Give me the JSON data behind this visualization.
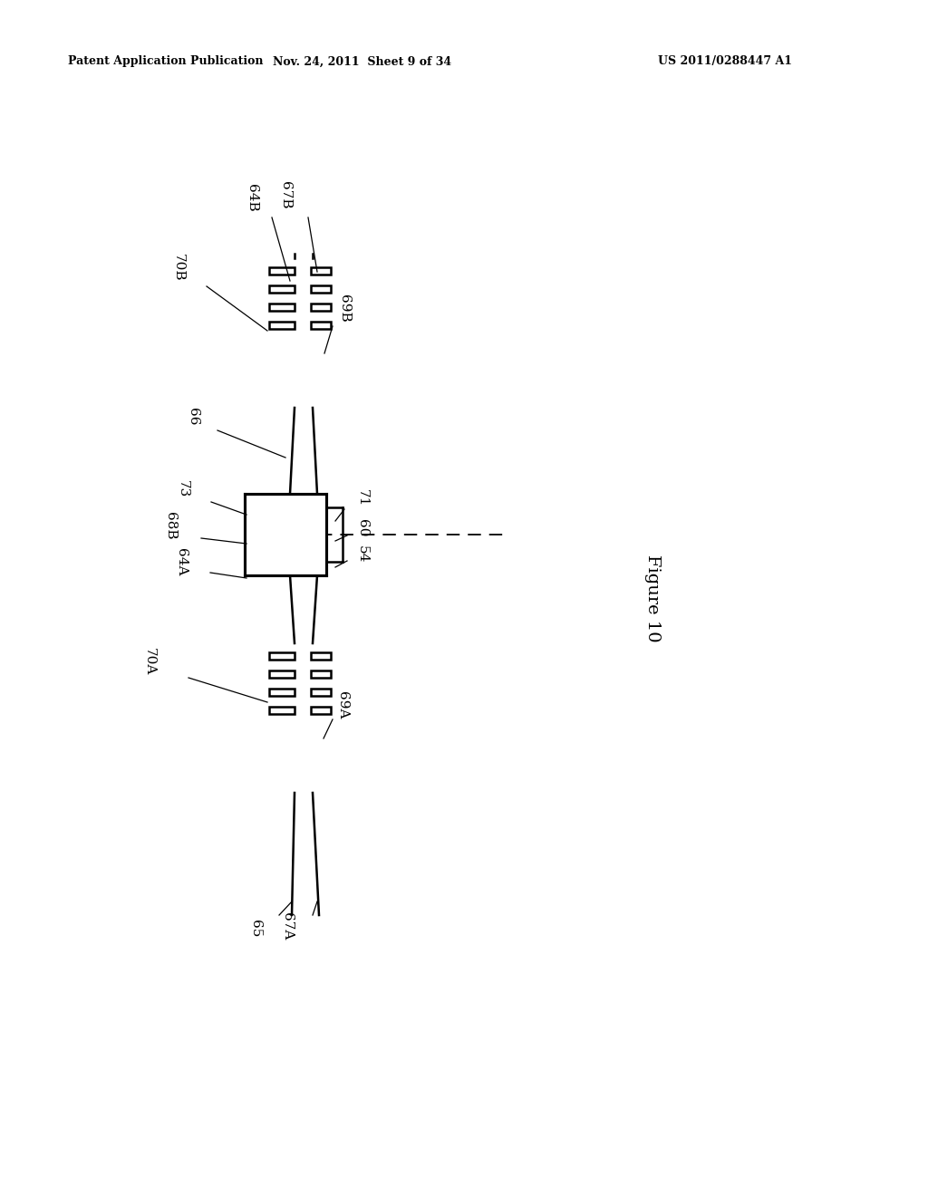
{
  "bg_color": "#ffffff",
  "header_left": "Patent Application Publication",
  "header_mid": "Nov. 24, 2011  Sheet 9 of 34",
  "header_right": "US 2011/0288447 A1",
  "figure_label": "Figure 10"
}
